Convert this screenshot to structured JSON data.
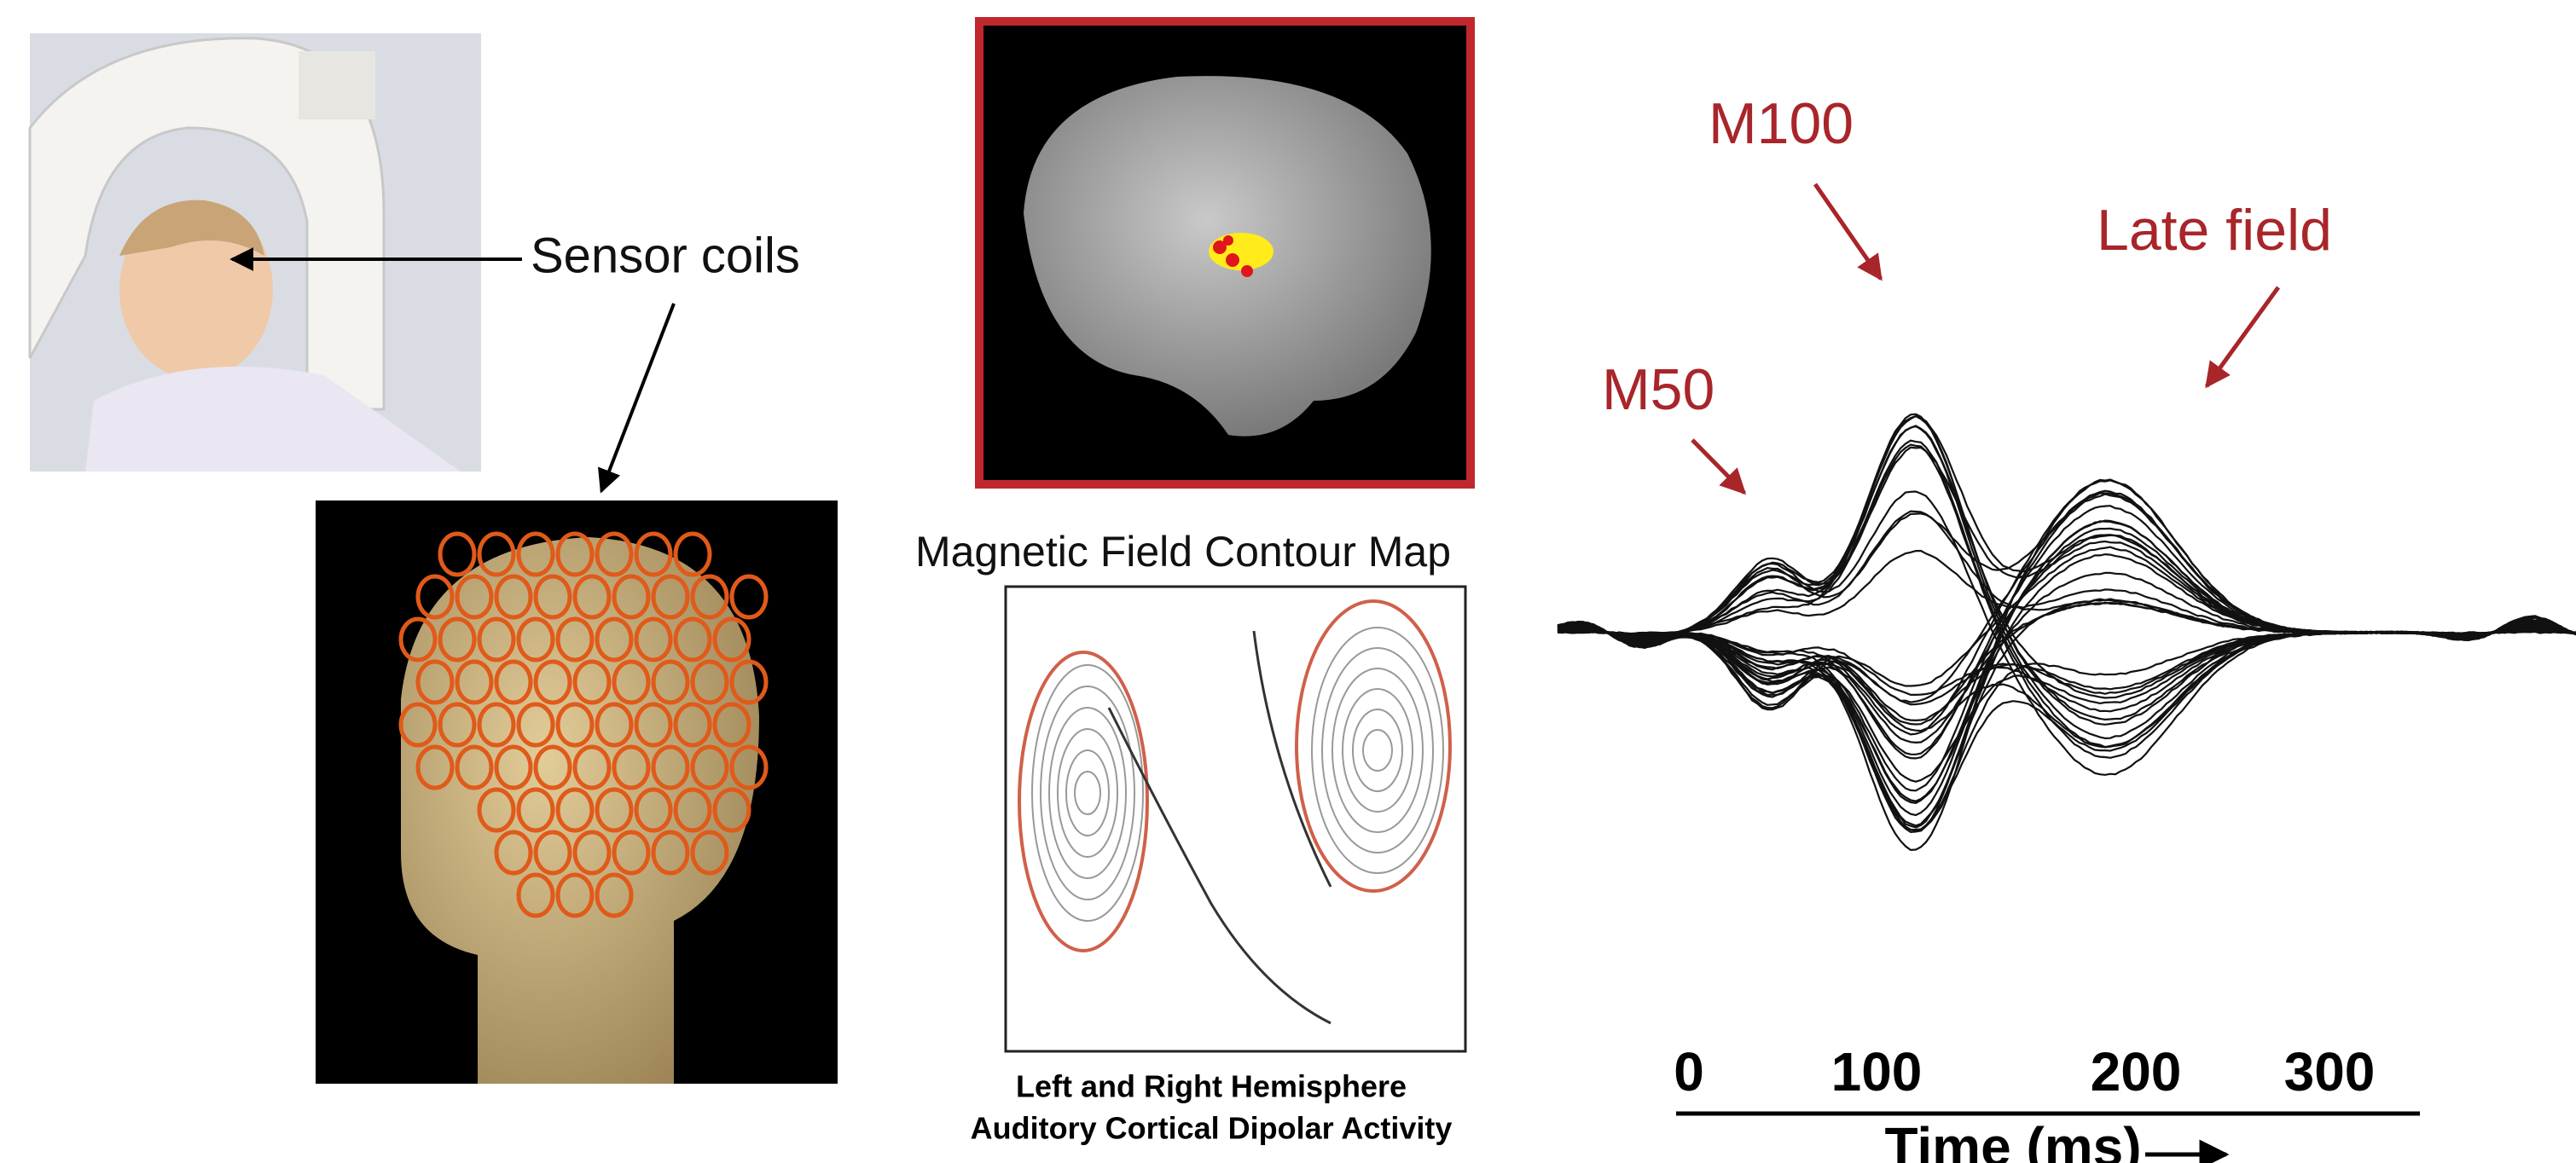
{
  "sensor_label": "Sensor coils",
  "contour_map": {
    "title": "Magnetic Field Contour Map",
    "caption": [
      "Left and Right Hemisphere",
      "Auditory Cortical Dipolar Activity"
    ]
  },
  "waveform": {
    "peaks": [
      "M50",
      "M100",
      "Late field"
    ],
    "time_axis": {
      "ticks": [
        0,
        100,
        200,
        300
      ],
      "label": "Time (ms)"
    }
  }
}
